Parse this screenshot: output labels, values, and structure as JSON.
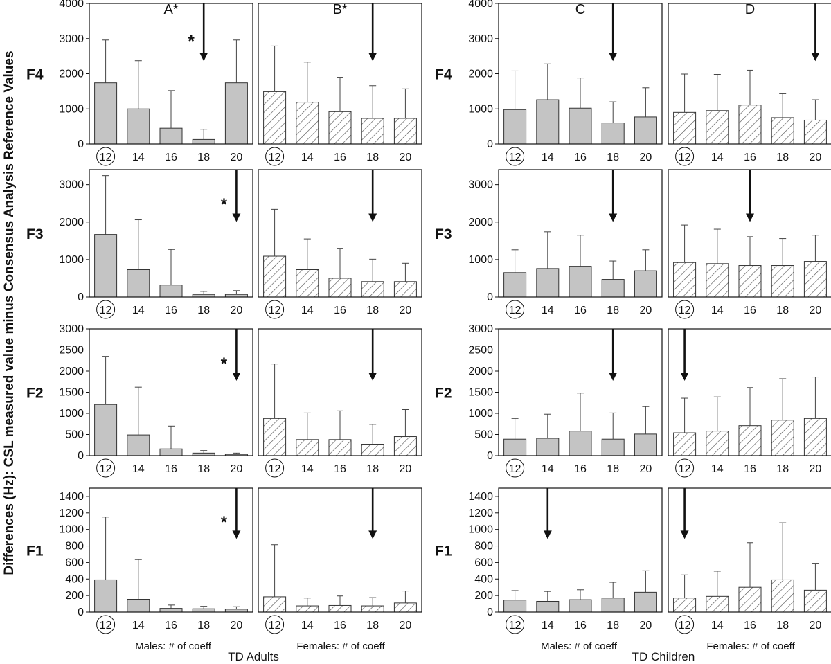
{
  "figure": {
    "y_axis_label": "Differences (Hz): CSL measured value minus Consensus Analysis Reference Values",
    "column_titles": [
      "A*",
      "B*",
      "C",
      "D"
    ],
    "row_labels": [
      "F4",
      "F3",
      "F2",
      "F1"
    ],
    "x_axis_labels": [
      "Males: # of coeff",
      "Females: # of coeff",
      "Males: # of coeff",
      "Females: # of coeff"
    ],
    "group_labels": [
      "TD Adults",
      "TD Children"
    ],
    "circled_category": "12",
    "significance_marker": "*"
  },
  "chart_data": {
    "type": "bar",
    "categories": [
      "12",
      "14",
      "16",
      "18",
      "20"
    ],
    "columns": [
      {
        "title": "A*",
        "group": "TD Adults",
        "sex": "Males",
        "fill": "solid-gray",
        "color": "#c4c4c4"
      },
      {
        "title": "B*",
        "group": "TD Adults",
        "sex": "Females",
        "fill": "hatched",
        "color": "#ffffff"
      },
      {
        "title": "C",
        "group": "TD Children",
        "sex": "Males",
        "fill": "solid-gray",
        "color": "#c4c4c4"
      },
      {
        "title": "D",
        "group": "TD Children",
        "sex": "Females",
        "fill": "hatched",
        "color": "#ffffff"
      }
    ],
    "rows": [
      {
        "label": "F4",
        "ylim": [
          0,
          4000
        ],
        "yticks": [
          0,
          1000,
          2000,
          3000,
          4000
        ],
        "panels": [
          {
            "values": [
              1740,
              1000,
              450,
              130,
              1740
            ],
            "errors": [
              1220,
              1370,
              1070,
              290,
              1220
            ],
            "arrow_at": "18",
            "star": true
          },
          {
            "values": [
              1490,
              1190,
              920,
              730,
              730
            ],
            "errors": [
              1300,
              1140,
              980,
              930,
              840
            ],
            "arrow_at": "18",
            "star": false
          },
          {
            "values": [
              980,
              1260,
              1020,
              600,
              770
            ],
            "errors": [
              1100,
              1020,
              860,
              600,
              830
            ],
            "arrow_at": "18",
            "star": false
          },
          {
            "values": [
              900,
              950,
              1110,
              750,
              680
            ],
            "errors": [
              1090,
              1030,
              990,
              680,
              580
            ],
            "arrow_at": "20",
            "star": false
          }
        ]
      },
      {
        "label": "F3",
        "ylim": [
          0,
          3400
        ],
        "yticks": [
          0,
          1000,
          2000,
          3000
        ],
        "panels": [
          {
            "values": [
              1670,
              730,
              320,
              70,
              70
            ],
            "errors": [
              1570,
              1330,
              950,
              80,
              100
            ],
            "arrow_at": "20",
            "star": true
          },
          {
            "values": [
              1090,
              730,
              500,
              410,
              410
            ],
            "errors": [
              1250,
              820,
              800,
              600,
              490
            ],
            "arrow_at": "18",
            "star": false
          },
          {
            "values": [
              650,
              760,
              820,
              470,
              700
            ],
            "errors": [
              610,
              980,
              830,
              490,
              560
            ],
            "arrow_at": "18",
            "star": false
          },
          {
            "values": [
              920,
              890,
              840,
              840,
              950
            ],
            "errors": [
              1000,
              920,
              770,
              720,
              700
            ],
            "arrow_at": "16",
            "star": false
          }
        ]
      },
      {
        "label": "F2",
        "ylim": [
          0,
          3000
        ],
        "yticks": [
          0,
          500,
          1000,
          1500,
          2000,
          2500,
          3000
        ],
        "panels": [
          {
            "values": [
              1210,
              490,
              160,
              60,
              30
            ],
            "errors": [
              1140,
              1130,
              540,
              60,
              30
            ],
            "arrow_at": "20",
            "star": true
          },
          {
            "values": [
              880,
              380,
              380,
              270,
              450
            ],
            "errors": [
              1290,
              630,
              680,
              470,
              640
            ],
            "arrow_at": "18",
            "star": false
          },
          {
            "values": [
              390,
              410,
              580,
              390,
              510
            ],
            "errors": [
              490,
              570,
              900,
              620,
              650
            ],
            "arrow_at": "18",
            "star": false
          },
          {
            "values": [
              540,
              580,
              710,
              840,
              880
            ],
            "errors": [
              820,
              810,
              900,
              980,
              980
            ],
            "arrow_at": "12",
            "star": false
          }
        ]
      },
      {
        "label": "F1",
        "ylim": [
          0,
          1500
        ],
        "yticks": [
          0,
          200,
          400,
          600,
          800,
          1000,
          1200,
          1400
        ],
        "panels": [
          {
            "values": [
              390,
              155,
              45,
              40,
              35
            ],
            "errors": [
              760,
              480,
              40,
              30,
              30
            ],
            "arrow_at": "20",
            "star": true
          },
          {
            "values": [
              185,
              75,
              80,
              75,
              110
            ],
            "errors": [
              630,
              95,
              115,
              100,
              145
            ],
            "arrow_at": "18",
            "star": false
          },
          {
            "values": [
              145,
              130,
              150,
              170,
              240
            ],
            "errors": [
              115,
              120,
              120,
              190,
              260
            ],
            "arrow_at": "14",
            "star": false
          },
          {
            "values": [
              170,
              190,
              300,
              390,
              265
            ],
            "errors": [
              280,
              305,
              540,
              690,
              325
            ],
            "arrow_at": "12",
            "star": false
          }
        ]
      }
    ]
  }
}
